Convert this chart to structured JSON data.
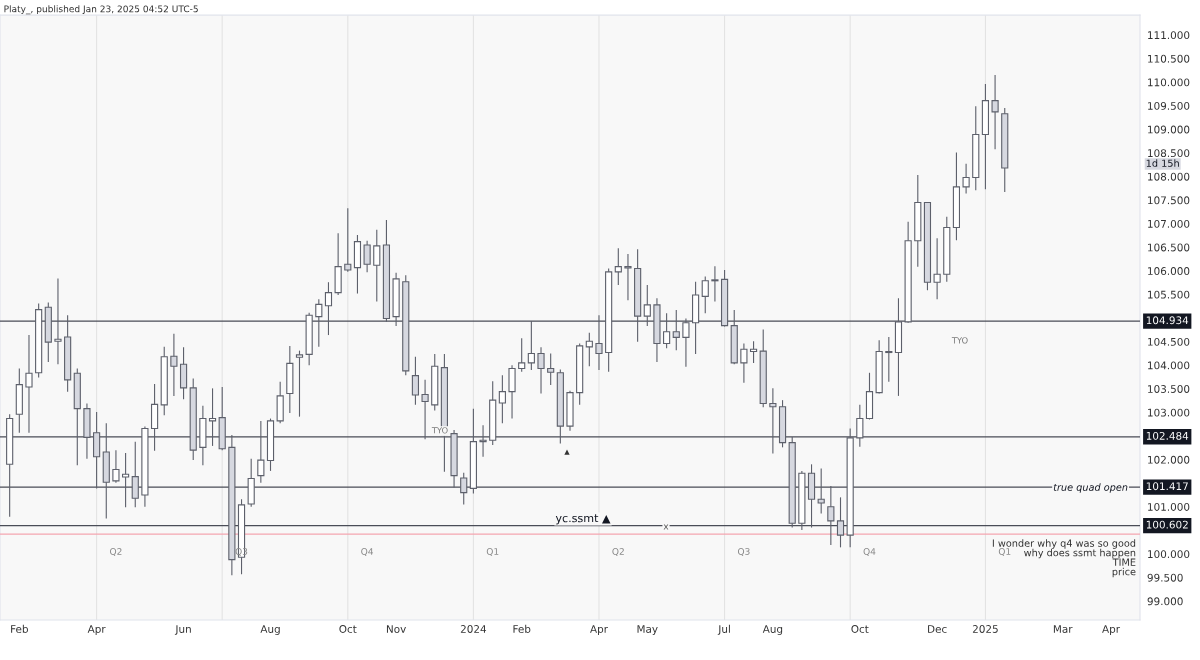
{
  "chart_data": {
    "type": "candlestick",
    "title": "Platy_, published Jan 23, 2025 04:52 UTC-5",
    "x": [
      "2023-01-30",
      "2023-02-06",
      "2023-02-13",
      "2023-02-20",
      "2023-02-27",
      "2023-03-06",
      "2023-03-13",
      "2023-03-20",
      "2023-03-27",
      "2023-04-03",
      "2023-04-10",
      "2023-04-17",
      "2023-04-24",
      "2023-05-01",
      "2023-05-08",
      "2023-05-15",
      "2023-05-22",
      "2023-05-29",
      "2023-06-05",
      "2023-06-12",
      "2023-06-19",
      "2023-06-26",
      "2023-07-03",
      "2023-07-10",
      "2023-07-17",
      "2023-07-24",
      "2023-07-31",
      "2023-08-07",
      "2023-08-14",
      "2023-08-21",
      "2023-08-28",
      "2023-09-04",
      "2023-09-11",
      "2023-09-18",
      "2023-09-25",
      "2023-10-02",
      "2023-10-09",
      "2023-10-16",
      "2023-10-23",
      "2023-10-30",
      "2023-11-06",
      "2023-11-13",
      "2023-11-20",
      "2023-11-27",
      "2023-12-04",
      "2023-12-11",
      "2023-12-18",
      "2023-12-25",
      "2024-01-01",
      "2024-01-08",
      "2024-01-15",
      "2024-01-22",
      "2024-01-29",
      "2024-02-05",
      "2024-02-12",
      "2024-02-19",
      "2024-02-26",
      "2024-03-04",
      "2024-03-11",
      "2024-03-18",
      "2024-03-25",
      "2024-04-01",
      "2024-04-08",
      "2024-04-15",
      "2024-04-22",
      "2024-04-29",
      "2024-05-06",
      "2024-05-13",
      "2024-05-20",
      "2024-05-27",
      "2024-06-03",
      "2024-06-10",
      "2024-06-17",
      "2024-06-24",
      "2024-07-01",
      "2024-07-08",
      "2024-07-15",
      "2024-07-22",
      "2024-07-29",
      "2024-08-05",
      "2024-08-12",
      "2024-08-19",
      "2024-08-26",
      "2024-09-02",
      "2024-09-09",
      "2024-09-16",
      "2024-09-23",
      "2024-09-30",
      "2024-10-07",
      "2024-10-14",
      "2024-10-21",
      "2024-10-28",
      "2024-11-04",
      "2024-11-11",
      "2024-11-18",
      "2024-11-25",
      "2024-12-02",
      "2024-12-09",
      "2024-12-16",
      "2024-12-23",
      "2024-12-30",
      "2025-01-06",
      "2025-01-13",
      "2025-01-20"
    ],
    "ohlc": [
      [
        101.9,
        102.96,
        100.79,
        102.87
      ],
      [
        102.96,
        103.93,
        102.57,
        103.59
      ],
      [
        103.54,
        104.64,
        102.57,
        103.83
      ],
      [
        103.84,
        105.31,
        103.74,
        105.18
      ],
      [
        105.23,
        105.33,
        104.07,
        104.49
      ],
      [
        104.51,
        105.84,
        104.02,
        104.55
      ],
      [
        104.6,
        105.06,
        103.44,
        103.69
      ],
      [
        103.83,
        103.93,
        101.88,
        103.08
      ],
      [
        103.08,
        103.19,
        102.02,
        102.47
      ],
      [
        102.57,
        103.01,
        101.39,
        102.06
      ],
      [
        102.16,
        102.77,
        100.75,
        101.52
      ],
      [
        101.55,
        102.2,
        101.51,
        101.79
      ],
      [
        101.63,
        102.14,
        100.99,
        101.69
      ],
      [
        101.64,
        102.38,
        100.99,
        101.18
      ],
      [
        101.25,
        102.7,
        101.0,
        102.66
      ],
      [
        102.66,
        103.6,
        102.19,
        103.17
      ],
      [
        103.16,
        104.39,
        102.94,
        104.18
      ],
      [
        104.19,
        104.67,
        103.35,
        103.98
      ],
      [
        104.02,
        104.38,
        103.28,
        103.52
      ],
      [
        103.52,
        103.72,
        101.99,
        102.2
      ],
      [
        102.26,
        103.14,
        101.88,
        102.87
      ],
      [
        102.82,
        103.51,
        102.29,
        102.87
      ],
      [
        102.89,
        103.54,
        102.2,
        102.23
      ],
      [
        102.26,
        102.52,
        99.55,
        99.88
      ],
      [
        99.93,
        101.16,
        99.57,
        101.04
      ],
      [
        101.06,
        102.02,
        101.0,
        101.6
      ],
      [
        101.66,
        102.82,
        101.51,
        101.99
      ],
      [
        101.98,
        102.87,
        101.76,
        102.82
      ],
      [
        102.82,
        103.65,
        102.77,
        103.35
      ],
      [
        103.4,
        104.41,
        102.99,
        104.04
      ],
      [
        104.17,
        104.31,
        102.91,
        104.22
      ],
      [
        104.23,
        105.11,
        104.0,
        105.06
      ],
      [
        105.03,
        105.4,
        104.39,
        105.29
      ],
      [
        105.26,
        105.76,
        104.64,
        105.54
      ],
      [
        105.54,
        106.8,
        105.49,
        106.09
      ],
      [
        106.14,
        107.33,
        105.98,
        106.02
      ],
      [
        106.07,
        106.76,
        105.52,
        106.62
      ],
      [
        106.55,
        106.64,
        105.97,
        106.14
      ],
      [
        106.12,
        106.87,
        105.35,
        106.53
      ],
      [
        106.55,
        107.08,
        104.92,
        104.99
      ],
      [
        105.03,
        105.96,
        104.83,
        105.83
      ],
      [
        105.77,
        105.91,
        103.79,
        103.88
      ],
      [
        103.78,
        104.18,
        103.16,
        103.37
      ],
      [
        103.38,
        103.69,
        102.43,
        103.23
      ],
      [
        103.16,
        104.24,
        103.04,
        103.98
      ],
      [
        103.95,
        104.24,
        101.74,
        102.52
      ],
      [
        102.55,
        102.63,
        101.41,
        101.66
      ],
      [
        101.61,
        101.72,
        101.05,
        101.3
      ],
      [
        101.39,
        103.08,
        101.28,
        102.38
      ],
      [
        102.38,
        102.73,
        102.06,
        102.41
      ],
      [
        102.41,
        103.66,
        102.31,
        103.26
      ],
      [
        103.2,
        103.79,
        102.77,
        103.44
      ],
      [
        103.44,
        104.0,
        102.87,
        103.93
      ],
      [
        103.93,
        104.57,
        103.86,
        104.05
      ],
      [
        104.05,
        104.94,
        103.9,
        104.25
      ],
      [
        104.25,
        104.38,
        103.4,
        103.93
      ],
      [
        103.93,
        104.25,
        103.58,
        103.85
      ],
      [
        103.84,
        103.91,
        102.34,
        102.71
      ],
      [
        102.71,
        103.46,
        102.61,
        103.42
      ],
      [
        103.42,
        104.46,
        103.16,
        104.41
      ],
      [
        104.39,
        104.69,
        103.98,
        104.51
      ],
      [
        104.46,
        105.06,
        103.9,
        104.25
      ],
      [
        104.27,
        106.05,
        103.86,
        105.98
      ],
      [
        105.98,
        106.48,
        105.7,
        106.09
      ],
      [
        106.09,
        106.36,
        105.38,
        106.06
      ],
      [
        106.05,
        106.46,
        104.5,
        105.04
      ],
      [
        105.04,
        105.7,
        104.83,
        105.28
      ],
      [
        105.28,
        105.42,
        104.07,
        104.46
      ],
      [
        104.46,
        105.1,
        104.36,
        104.71
      ],
      [
        104.71,
        105.17,
        104.32,
        104.59
      ],
      [
        104.59,
        104.99,
        103.97,
        104.9
      ],
      [
        104.9,
        105.77,
        104.24,
        105.49
      ],
      [
        105.46,
        105.88,
        105.1,
        105.79
      ],
      [
        105.79,
        106.1,
        105.35,
        105.81
      ],
      [
        105.82,
        106.02,
        104.82,
        104.84
      ],
      [
        104.84,
        105.17,
        104.02,
        104.05
      ],
      [
        104.05,
        104.46,
        103.63,
        104.34
      ],
      [
        104.29,
        104.51,
        104.05,
        104.34
      ],
      [
        104.3,
        104.76,
        103.11,
        103.19
      ],
      [
        103.19,
        103.51,
        102.13,
        103.12
      ],
      [
        103.12,
        103.26,
        102.26,
        102.36
      ],
      [
        102.36,
        102.48,
        100.56,
        100.65
      ],
      [
        100.65,
        101.76,
        100.51,
        101.71
      ],
      [
        101.71,
        101.9,
        100.56,
        101.16
      ],
      [
        101.16,
        101.81,
        100.86,
        101.08
      ],
      [
        101.0,
        101.44,
        100.19,
        100.7
      ],
      [
        100.7,
        101.2,
        100.14,
        100.4
      ],
      [
        100.4,
        102.66,
        100.14,
        102.46
      ],
      [
        102.46,
        103.16,
        102.27,
        102.87
      ],
      [
        102.87,
        103.84,
        102.85,
        103.44
      ],
      [
        103.42,
        104.53,
        103.4,
        104.29
      ],
      [
        104.27,
        104.6,
        103.65,
        104.29
      ],
      [
        104.27,
        105.42,
        103.35,
        104.92
      ],
      [
        104.92,
        107.04,
        104.9,
        106.64
      ],
      [
        106.64,
        108.03,
        106.09,
        107.45
      ],
      [
        107.45,
        107.45,
        105.59,
        105.76
      ],
      [
        105.76,
        106.69,
        105.4,
        105.93
      ],
      [
        105.93,
        107.15,
        105.77,
        106.92
      ],
      [
        106.92,
        108.51,
        106.65,
        107.78
      ],
      [
        107.78,
        108.27,
        107.64,
        107.98
      ],
      [
        107.98,
        109.49,
        107.71,
        108.89
      ],
      [
        108.89,
        109.96,
        107.73,
        109.61
      ],
      [
        109.61,
        110.15,
        108.58,
        109.37
      ],
      [
        109.33,
        109.45,
        107.67,
        108.18
      ]
    ],
    "xlim": [
      "2023-01-23",
      "2025-04-28"
    ],
    "xticks": [
      {
        "value": "2023-02-06",
        "label": "Feb"
      },
      {
        "value": "2023-04-03",
        "label": "Apr"
      },
      {
        "value": "2023-06-05",
        "label": "Jun"
      },
      {
        "value": "2023-08-07",
        "label": "Aug"
      },
      {
        "value": "2023-10-02",
        "label": "Oct"
      },
      {
        "value": "2023-11-06",
        "label": "Nov"
      },
      {
        "value": "2024-01-01",
        "label": "2024"
      },
      {
        "value": "2024-02-05",
        "label": "Feb"
      },
      {
        "value": "2024-04-01",
        "label": "Apr"
      },
      {
        "value": "2024-05-06",
        "label": "May"
      },
      {
        "value": "2024-07-01",
        "label": "Jul"
      },
      {
        "value": "2024-08-05",
        "label": "Aug"
      },
      {
        "value": "2024-10-07",
        "label": "Oct"
      },
      {
        "value": "2024-12-02",
        "label": "Dec"
      },
      {
        "value": "2025-01-06",
        "label": "2025"
      },
      {
        "value": "2025-03-03",
        "label": "Mar"
      },
      {
        "value": "2025-04-07",
        "label": "Apr"
      }
    ],
    "ylim": [
      98.6,
      111.42
    ],
    "yticks": [
      {
        "value": 99,
        "label": "99.000"
      },
      {
        "value": 99.5,
        "label": "99.500"
      },
      {
        "value": 100,
        "label": "100.000"
      },
      {
        "value": 101,
        "label": "101.000"
      },
      {
        "value": 102,
        "label": "102.000"
      },
      {
        "value": 103,
        "label": "103.000"
      },
      {
        "value": 103.5,
        "label": "103.500"
      },
      {
        "value": 104,
        "label": "104.000"
      },
      {
        "value": 104.5,
        "label": "104.500"
      },
      {
        "value": 105.5,
        "label": "105.500"
      },
      {
        "value": 106,
        "label": "106.000"
      },
      {
        "value": 106.5,
        "label": "106.500"
      },
      {
        "value": 107,
        "label": "107.000"
      },
      {
        "value": 107.5,
        "label": "107.500"
      },
      {
        "value": 108,
        "label": "108.000"
      },
      {
        "value": 108.5,
        "label": "108.500"
      },
      {
        "value": 109,
        "label": "109.000"
      },
      {
        "value": 109.5,
        "label": "109.500"
      },
      {
        "value": 110,
        "label": "110.000"
      },
      {
        "value": 110.5,
        "label": "110.500"
      },
      {
        "value": 111,
        "label": "111.000"
      }
    ],
    "ref_lines": [
      {
        "axis": "y",
        "value": 104.934,
        "label": "104.934"
      },
      {
        "axis": "y",
        "value": 102.484,
        "label": "102.484"
      },
      {
        "axis": "y",
        "value": 101.417,
        "label": "101.417"
      },
      {
        "axis": "y",
        "value": 100.602,
        "label": "100.602"
      },
      {
        "axis": "y",
        "value": 100.42,
        "color": "#f4a6b0"
      },
      {
        "axis": "x",
        "value": "2023-04-03",
        "label": "Q2",
        "color": "#e3e3e3"
      },
      {
        "axis": "x",
        "value": "2023-07-03",
        "label": "Q3",
        "color": "#e3e3e3"
      },
      {
        "axis": "x",
        "value": "2023-10-02",
        "label": "Q4",
        "color": "#e3e3e3"
      },
      {
        "axis": "x",
        "value": "2024-01-01",
        "label": "Q1",
        "color": "#e3e3e3"
      },
      {
        "axis": "x",
        "value": "2024-04-01",
        "label": "Q2",
        "color": "#e3e3e3"
      },
      {
        "axis": "x",
        "value": "2024-07-01",
        "label": "Q3",
        "color": "#e3e3e3"
      },
      {
        "axis": "x",
        "value": "2024-09-30",
        "label": "Q4",
        "color": "#e3e3e3"
      },
      {
        "axis": "x",
        "value": "2025-01-06",
        "label": "Q1",
        "color": "#e3e3e3"
      }
    ],
    "annotations": [
      "true quad open",
      "TYO",
      "TYO",
      "yc.ssmt ▲",
      "x",
      "▲",
      "1d 15h",
      "I wonder why q4 was so good",
      "why does ssmt happen",
      "TIME",
      "price"
    ],
    "grid": false,
    "legend": false
  }
}
